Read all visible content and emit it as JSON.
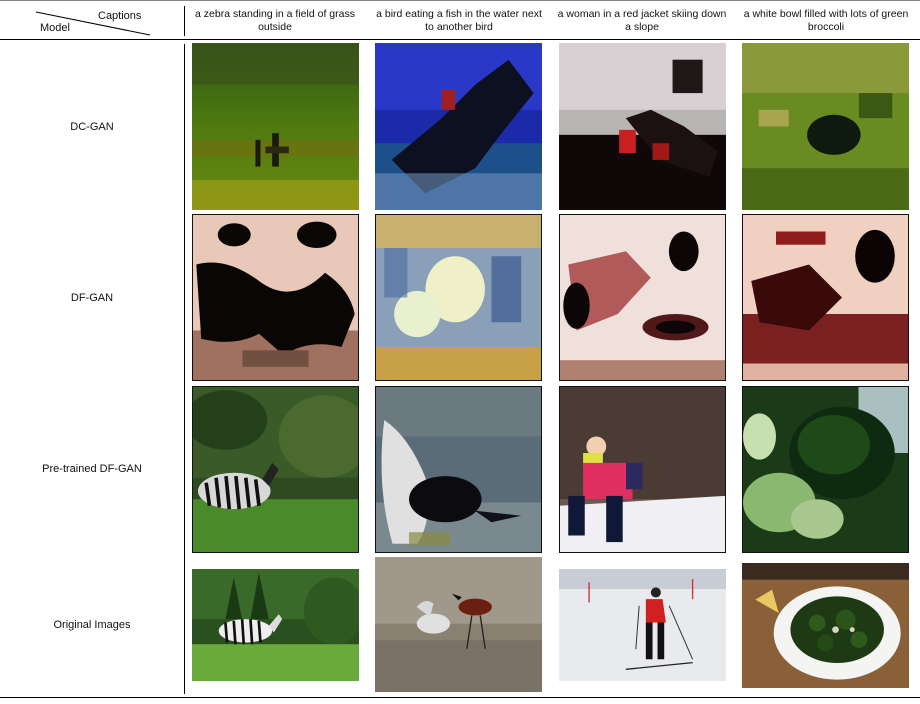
{
  "table": {
    "header": {
      "captions_label": "Captions",
      "model_label": "Model",
      "captions": [
        "a zebra standing in a field of grass outside",
        "a bird eating a fish in the water next to another bird",
        "a woman in a red jacket skiing down a slope",
        "a white bowl filled with lots of green broccoli"
      ]
    },
    "rows": [
      {
        "model": "DC-GAN"
      },
      {
        "model": "DF-GAN"
      },
      {
        "model": "Pre-trained DF-GAN"
      },
      {
        "model": "Original Images"
      }
    ]
  }
}
